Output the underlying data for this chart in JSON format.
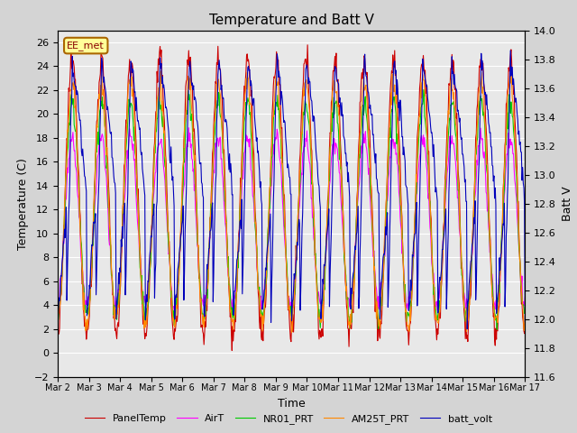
{
  "title": "Temperature and Batt V",
  "xlabel": "Time",
  "ylabel_left": "Temperature (C)",
  "ylabel_right": "Batt V",
  "annotation": "EE_met",
  "left_ylim": [
    -2,
    27
  ],
  "right_ylim": [
    11.6,
    14.0
  ],
  "xtick_labels": [
    "Mar 2",
    "Mar 3",
    "Mar 4",
    "Mar 5",
    "Mar 6",
    "Mar 7",
    "Mar 8",
    "Mar 9",
    "Mar 10",
    "Mar 11",
    "Mar 12",
    "Mar 13",
    "Mar 14",
    "Mar 15",
    "Mar 16",
    "Mar 17"
  ],
  "legend_entries": [
    "PanelTemp",
    "AirT",
    "NR01_PRT",
    "AM25T_PRT",
    "batt_volt"
  ],
  "legend_colors": [
    "#cc0000",
    "#ff00ff",
    "#00cc00",
    "#ff8800",
    "#0000bb"
  ],
  "bg_color": "#d4d4d4",
  "plot_bg": "#e8e8e8",
  "grid_color": "#ffffff",
  "title_fontsize": 11,
  "label_fontsize": 9,
  "tick_fontsize": 8
}
